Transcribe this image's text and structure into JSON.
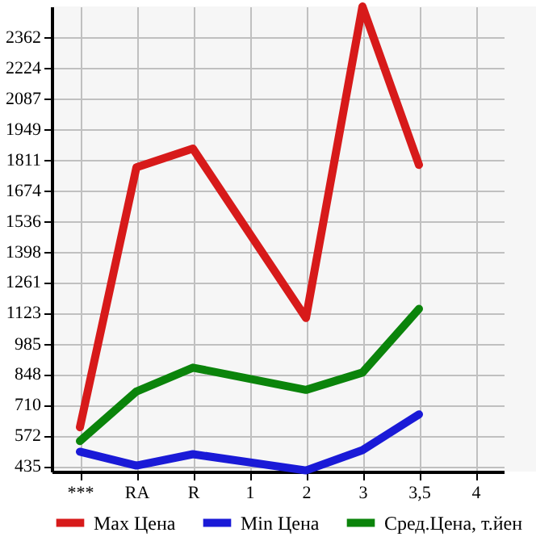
{
  "chart_data": {
    "type": "line",
    "categories": [
      "***",
      "RA",
      "R",
      "1",
      "2",
      "3",
      "3,5",
      "4"
    ],
    "series": [
      {
        "name": "Max Цена",
        "color": "#d71a1a",
        "values": [
          609,
          1777,
          1861,
          null,
          1100,
          2500,
          1788,
          null
        ]
      },
      {
        "name": "Min Цена",
        "color": "#1a1ad7",
        "values": [
          499,
          437,
          488,
          null,
          415,
          506,
          667,
          null
        ]
      },
      {
        "name": "Сред.Цена, т.йен",
        "color": "#0b840b",
        "values": [
          547,
          770,
          877,
          null,
          777,
          855,
          1141,
          null
        ]
      }
    ],
    "ylim": [
      410,
      2500
    ],
    "yticks": [
      435,
      572,
      710,
      848,
      985,
      1123,
      1261,
      1398,
      1536,
      1674,
      1811,
      1949,
      2087,
      2224,
      2362
    ],
    "grid": true,
    "legend": "bottom",
    "marker": "none",
    "line_style": "solid"
  }
}
